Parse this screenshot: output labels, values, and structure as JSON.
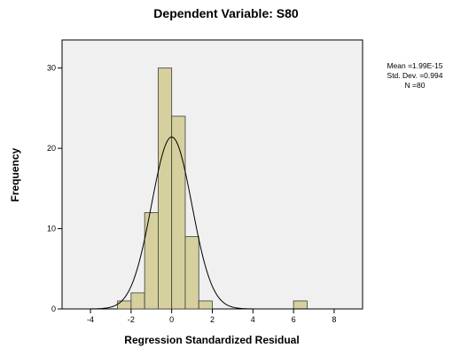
{
  "colors": {
    "plot_background": "#f0f0f0",
    "bar_fill": "#d6d09e",
    "bar_stroke": "#3c3c3c",
    "curve": "#000000"
  },
  "chart_data": {
    "type": "bar",
    "chart_kind": "histogram with normal curve",
    "title": "Dependent Variable: S80",
    "xlabel": "Regression Standardized Residual",
    "ylabel": "Frequency",
    "xlim": [
      -5.4,
      9.4
    ],
    "ylim": [
      0,
      33.5
    ],
    "x_ticks": [
      -4,
      -2,
      0,
      2,
      4,
      6,
      8
    ],
    "y_ticks": [
      0,
      10,
      20,
      30
    ],
    "x_tick_labels": [
      "-4",
      "-2",
      "0",
      "2",
      "4",
      "6",
      "8"
    ],
    "y_tick_labels": [
      "0",
      "10",
      "20",
      "30"
    ],
    "bin_width": 0.667,
    "bins": [
      {
        "start": -2.667,
        "end": -2.0,
        "count": 1
      },
      {
        "start": -2.0,
        "end": -1.333,
        "count": 2
      },
      {
        "start": -1.333,
        "end": -0.667,
        "count": 12
      },
      {
        "start": -0.667,
        "end": 0.0,
        "count": 30
      },
      {
        "start": 0.0,
        "end": 0.667,
        "count": 24
      },
      {
        "start": 0.667,
        "end": 1.333,
        "count": 9
      },
      {
        "start": 1.333,
        "end": 2.0,
        "count": 1
      },
      {
        "start": 6.0,
        "end": 6.667,
        "count": 1
      }
    ],
    "normal_curve": {
      "mean": 1.99e-15,
      "sd": 0.994,
      "n": 80
    },
    "stats_lines": [
      "Mean =1.99E-15",
      "Std. Dev. =0.994",
      "N =80"
    ],
    "legend_position": "right",
    "grid": false
  }
}
